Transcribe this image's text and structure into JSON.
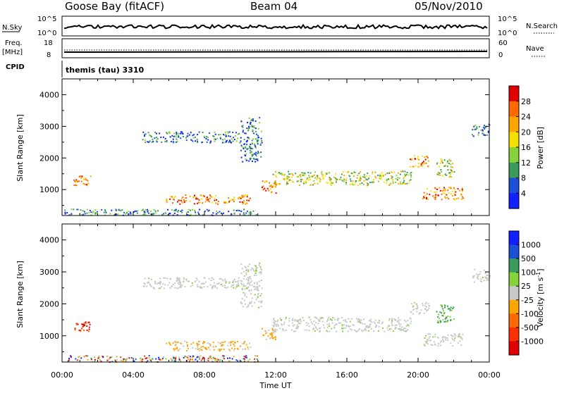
{
  "header": {
    "station": "Goose Bay (fitACF)",
    "beam": "Beam 04",
    "date": "05/Nov/2010"
  },
  "status_panels": {
    "nsky_label": "N.Sky",
    "nsky_ticks": [
      "10^5",
      "10^0"
    ],
    "nsearch_label": "N.Search",
    "nsearch_ticks": [
      "10^5",
      "10^0"
    ],
    "freq_label_top": "Freq.",
    "freq_label_bottom": "[MHz]",
    "freq_ticks": [
      "18",
      "8"
    ],
    "nave_label": "Nave",
    "nave_ticks": [
      "60",
      "0"
    ],
    "cpid_label": "CPID",
    "cpid_value": "themis (tau) 3310"
  },
  "chart_data": [
    {
      "type": "heatmap",
      "name": "power",
      "ylabel": "Slant Range [km]",
      "yticks": [
        1000,
        2000,
        3000,
        4000
      ],
      "ylim": [
        180,
        4500
      ],
      "xticks": [
        "00:00",
        "04:00",
        "08:00",
        "12:00",
        "16:00",
        "20:00",
        "00:00"
      ],
      "xlim_hours": [
        0,
        24
      ],
      "colorbar": {
        "label": "Power [dB]",
        "ticks": [
          "28",
          "24",
          "20",
          "16",
          "12",
          "8",
          "4"
        ],
        "colors": [
          "#e00000",
          "#ff6a00",
          "#ffa500",
          "#f5e000",
          "#86d23a",
          "#3a9c5a",
          "#1c4fd6",
          "#1020ff"
        ]
      },
      "echo_regions": [
        {
          "t": [
            0.1,
            11.0
          ],
          "r": [
            200,
            400
          ],
          "level": "low"
        },
        {
          "t": [
            5.8,
            10.6
          ],
          "r": [
            550,
            850
          ],
          "level": "high"
        },
        {
          "t": [
            0.6,
            1.6
          ],
          "r": [
            1150,
            1450
          ],
          "level": "high"
        },
        {
          "t": [
            4.5,
            10.0
          ],
          "r": [
            2500,
            2850
          ],
          "level": "low"
        },
        {
          "t": [
            10.0,
            11.2
          ],
          "r": [
            1900,
            3300
          ],
          "level": "low"
        },
        {
          "t": [
            11.2,
            12.0
          ],
          "r": [
            900,
            1300
          ],
          "level": "high"
        },
        {
          "t": [
            11.8,
            19.6
          ],
          "r": [
            1150,
            1600
          ],
          "level": "mid"
        },
        {
          "t": [
            19.5,
            20.6
          ],
          "r": [
            1700,
            2100
          ],
          "level": "high"
        },
        {
          "t": [
            20.2,
            22.5
          ],
          "r": [
            700,
            1100
          ],
          "level": "high"
        },
        {
          "t": [
            21.0,
            22.0
          ],
          "r": [
            1400,
            2000
          ],
          "level": "mid"
        },
        {
          "t": [
            23.0,
            24.0
          ],
          "r": [
            2700,
            3100
          ],
          "level": "low"
        }
      ]
    },
    {
      "type": "heatmap",
      "name": "velocity",
      "ylabel": "Slant Range [km]",
      "yticks": [
        1000,
        2000,
        3000,
        4000
      ],
      "ylim": [
        180,
        4500
      ],
      "xticks": [
        "00:00",
        "04:00",
        "08:00",
        "12:00",
        "16:00",
        "20:00",
        "00:00"
      ],
      "xlabel": "Time UT",
      "xlim_hours": [
        0,
        24
      ],
      "colorbar": {
        "label": "Velocity [m s",
        "label_sup": "-1",
        "label_end": "]",
        "ticks": [
          "1000",
          "500",
          "100",
          "25",
          "-25",
          "-100",
          "-500",
          "-1000"
        ],
        "colors": [
          "#1020ff",
          "#1c4fd6",
          "#3a9c5a",
          "#86d23a",
          "#c8c8c8",
          "#ffa500",
          "#ff6a00",
          "#ff3000",
          "#e00000"
        ]
      },
      "echo_regions": [
        {
          "t": [
            0.1,
            11.0
          ],
          "r": [
            200,
            400
          ],
          "level": "mixed"
        },
        {
          "t": [
            5.8,
            10.6
          ],
          "r": [
            550,
            850
          ],
          "level": "orange"
        },
        {
          "t": [
            0.6,
            1.6
          ],
          "r": [
            1150,
            1450
          ],
          "level": "red"
        },
        {
          "t": [
            4.5,
            10.0
          ],
          "r": [
            2500,
            2850
          ],
          "level": "gray"
        },
        {
          "t": [
            10.0,
            11.2
          ],
          "r": [
            1900,
            3300
          ],
          "level": "gray"
        },
        {
          "t": [
            11.2,
            12.0
          ],
          "r": [
            900,
            1300
          ],
          "level": "orange"
        },
        {
          "t": [
            11.8,
            19.6
          ],
          "r": [
            1150,
            1600
          ],
          "level": "gray"
        },
        {
          "t": [
            19.5,
            20.6
          ],
          "r": [
            1700,
            2100
          ],
          "level": "gray"
        },
        {
          "t": [
            20.2,
            22.5
          ],
          "r": [
            700,
            1100
          ],
          "level": "gray"
        },
        {
          "t": [
            21.0,
            22.0
          ],
          "r": [
            1400,
            2000
          ],
          "level": "green"
        },
        {
          "t": [
            23.0,
            24.0
          ],
          "r": [
            2700,
            3100
          ],
          "level": "gray"
        }
      ]
    }
  ]
}
